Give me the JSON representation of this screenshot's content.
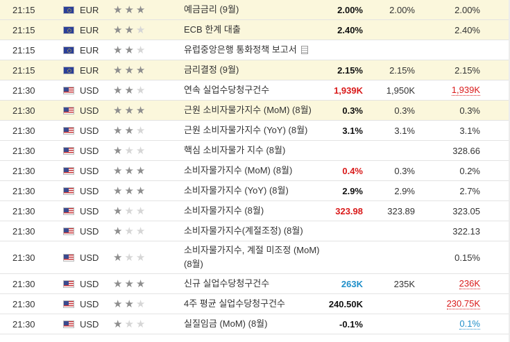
{
  "rows": [
    {
      "time": "21:15",
      "flag": "eu",
      "currency": "EUR",
      "stars": 3,
      "event": "예금금리 (9월)",
      "actual": "2.00%",
      "actual_color": "",
      "forecast": "2.00%",
      "previous": "2.00%",
      "previous_style": "",
      "doc": false,
      "highlight": true
    },
    {
      "time": "21:15",
      "flag": "eu",
      "currency": "EUR",
      "stars": 2,
      "event": "ECB 한계 대출",
      "actual": "2.40%",
      "actual_color": "",
      "forecast": "",
      "previous": "2.40%",
      "previous_style": "",
      "doc": false,
      "highlight": true
    },
    {
      "time": "21:15",
      "flag": "eu",
      "currency": "EUR",
      "stars": 2,
      "event": "유럽중앙은행 통화정책 보고서",
      "actual": "",
      "actual_color": "",
      "forecast": "",
      "previous": "",
      "previous_style": "",
      "doc": true,
      "highlight": false
    },
    {
      "time": "21:15",
      "flag": "eu",
      "currency": "EUR",
      "stars": 3,
      "event": "금리결정 (9월)",
      "actual": "2.15%",
      "actual_color": "",
      "forecast": "2.15%",
      "previous": "2.15%",
      "previous_style": "",
      "doc": false,
      "highlight": true
    },
    {
      "time": "21:30",
      "flag": "us",
      "currency": "USD",
      "stars": 2,
      "event": "연속 실업수당청구건수",
      "actual": "1,939K",
      "actual_color": "red",
      "forecast": "1,950K",
      "previous": "1,939K",
      "previous_style": "dotted-red",
      "doc": false,
      "highlight": false
    },
    {
      "time": "21:30",
      "flag": "us",
      "currency": "USD",
      "stars": 3,
      "event": "근원 소비자물가지수 (MoM) (8월)",
      "actual": "0.3%",
      "actual_color": "",
      "forecast": "0.3%",
      "previous": "0.3%",
      "previous_style": "",
      "doc": false,
      "highlight": true
    },
    {
      "time": "21:30",
      "flag": "us",
      "currency": "USD",
      "stars": 2,
      "event": "근원 소비자물가지수 (YoY) (8월)",
      "actual": "3.1%",
      "actual_color": "",
      "forecast": "3.1%",
      "previous": "3.1%",
      "previous_style": "",
      "doc": false,
      "highlight": false
    },
    {
      "time": "21:30",
      "flag": "us",
      "currency": "USD",
      "stars": 1,
      "event": "핵심 소비자물가 지수 (8월)",
      "actual": "",
      "actual_color": "",
      "forecast": "",
      "previous": "328.66",
      "previous_style": "",
      "doc": false,
      "highlight": false
    },
    {
      "time": "21:30",
      "flag": "us",
      "currency": "USD",
      "stars": 3,
      "event": "소비자물가지수 (MoM) (8월)",
      "actual": "0.4%",
      "actual_color": "red",
      "forecast": "0.3%",
      "previous": "0.2%",
      "previous_style": "",
      "doc": false,
      "highlight": false
    },
    {
      "time": "21:30",
      "flag": "us",
      "currency": "USD",
      "stars": 3,
      "event": "소비자물가지수 (YoY) (8월)",
      "actual": "2.9%",
      "actual_color": "",
      "forecast": "2.9%",
      "previous": "2.7%",
      "previous_style": "",
      "doc": false,
      "highlight": false
    },
    {
      "time": "21:30",
      "flag": "us",
      "currency": "USD",
      "stars": 1,
      "event": "소비자물가지수 (8월)",
      "actual": "323.98",
      "actual_color": "red",
      "forecast": "323.89",
      "previous": "323.05",
      "previous_style": "",
      "doc": false,
      "highlight": false
    },
    {
      "time": "21:30",
      "flag": "us",
      "currency": "USD",
      "stars": 1,
      "event": "소비자물가지수(계절조정) (8월)",
      "actual": "",
      "actual_color": "",
      "forecast": "",
      "previous": "322.13",
      "previous_style": "",
      "doc": false,
      "highlight": false
    },
    {
      "time": "21:30",
      "flag": "us",
      "currency": "USD",
      "stars": 1,
      "event": "소비자물가지수, 계절 미조정 (MoM) (8월)",
      "actual": "",
      "actual_color": "",
      "forecast": "",
      "previous": "0.15%",
      "previous_style": "",
      "doc": false,
      "highlight": false
    },
    {
      "time": "21:30",
      "flag": "us",
      "currency": "USD",
      "stars": 3,
      "event": "신규 실업수당청구건수",
      "actual": "263K",
      "actual_color": "blue",
      "forecast": "235K",
      "previous": "236K",
      "previous_style": "dotted-red",
      "doc": false,
      "highlight": false
    },
    {
      "time": "21:30",
      "flag": "us",
      "currency": "USD",
      "stars": 2,
      "event": "4주 평균 실업수당청구건수",
      "actual": "240.50K",
      "actual_color": "",
      "forecast": "",
      "previous": "230.75K",
      "previous_style": "dotted-red",
      "doc": false,
      "highlight": false
    },
    {
      "time": "21:30",
      "flag": "us",
      "currency": "USD",
      "stars": 1,
      "event": "실질임금 (MoM) (8월)",
      "actual": "-0.1%",
      "actual_color": "",
      "forecast": "",
      "previous": "0.1%",
      "previous_style": "dotted-blue",
      "doc": false,
      "highlight": false
    }
  ]
}
